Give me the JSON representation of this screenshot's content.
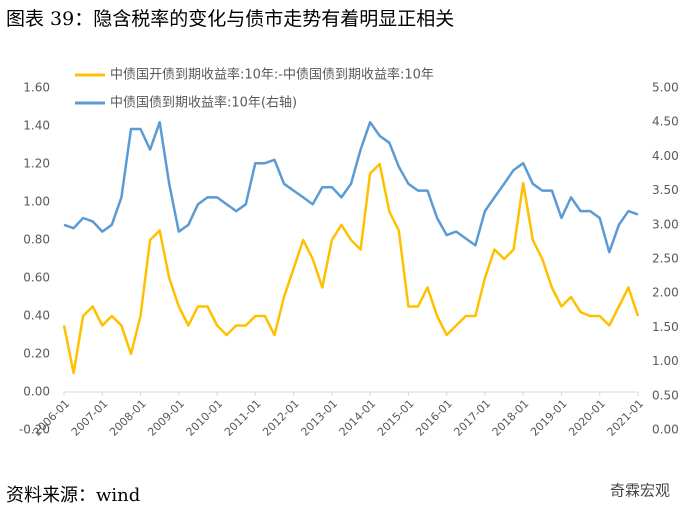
{
  "chart_data": {
    "type": "line",
    "title": "图表 39：隐含税率的变化与债市走势有着明显正相关",
    "source": "资料来源：wind",
    "watermark": "奇霖宏观",
    "categories": [
      "2006-01",
      null,
      null,
      null,
      "2007-01",
      null,
      null,
      null,
      "2008-01",
      null,
      null,
      null,
      "2009-01",
      null,
      null,
      null,
      "2010-01",
      null,
      null,
      null,
      "2011-01",
      null,
      null,
      null,
      "2012-01",
      null,
      null,
      null,
      "2013-01",
      null,
      null,
      null,
      "2014-01",
      null,
      null,
      null,
      "2015-01",
      null,
      null,
      null,
      "2016-01",
      null,
      null,
      null,
      "2017-01",
      null,
      null,
      null,
      "2018-01",
      null,
      null,
      null,
      "2019-01",
      null,
      null,
      null,
      "2020-01",
      null,
      null,
      null,
      "2021-01"
    ],
    "series": [
      {
        "name": "中债国开债到期收益率:10年:-中债国债到期收益率:10年",
        "color": "#ffc000",
        "values": [
          0.35,
          0.1,
          0.4,
          0.45,
          0.35,
          0.4,
          0.35,
          0.2,
          0.4,
          0.8,
          0.85,
          0.6,
          0.45,
          0.35,
          0.45,
          0.45,
          0.35,
          0.3,
          0.35,
          0.35,
          0.4,
          0.4,
          0.3,
          0.5,
          0.65,
          0.8,
          0.7,
          0.55,
          0.8,
          0.88,
          0.8,
          0.75,
          1.15,
          1.2,
          0.95,
          0.85,
          0.45,
          0.45,
          0.55,
          0.4,
          0.3,
          0.35,
          0.4,
          0.4,
          0.6,
          0.75,
          0.7,
          0.75,
          1.1,
          0.8,
          0.7,
          0.55,
          0.45,
          0.5,
          0.42,
          0.4,
          0.4,
          0.35,
          0.45,
          0.55,
          0.4
        ]
      },
      {
        "name": "中债国债到期收益率:10年(右轴)",
        "color": "#5b9bd5",
        "axis": "y2",
        "values": [
          3.0,
          2.95,
          3.1,
          3.05,
          2.9,
          3.0,
          3.4,
          4.4,
          4.4,
          4.1,
          4.5,
          3.6,
          2.9,
          3.0,
          3.3,
          3.4,
          3.4,
          3.3,
          3.2,
          3.3,
          3.9,
          3.9,
          3.95,
          3.6,
          3.5,
          3.4,
          3.3,
          3.55,
          3.55,
          3.4,
          3.6,
          4.1,
          4.5,
          4.3,
          4.2,
          3.85,
          3.6,
          3.5,
          3.5,
          3.1,
          2.85,
          2.9,
          2.8,
          2.7,
          3.2,
          3.4,
          3.6,
          3.8,
          3.9,
          3.6,
          3.5,
          3.5,
          3.1,
          3.4,
          3.2,
          3.2,
          3.1,
          2.6,
          3.0,
          3.2,
          3.15
        ]
      }
    ],
    "ylim": [
      -0.2,
      1.6
    ],
    "yticks": [
      {
        "value": -0.2,
        "label": "-0.20"
      },
      {
        "value": 0,
        "label": "0.00"
      },
      {
        "value": 0.2,
        "label": "0.20"
      },
      {
        "value": 0.4,
        "label": "0.40"
      },
      {
        "value": 0.6,
        "label": "0.60"
      },
      {
        "value": 0.8,
        "label": "0.80"
      },
      {
        "value": 1.0,
        "label": "1.00"
      },
      {
        "value": 1.2,
        "label": "1.20"
      },
      {
        "value": 1.4,
        "label": "1.40"
      },
      {
        "value": 1.6,
        "label": "1.60"
      }
    ],
    "y2lim": [
      0,
      5
    ],
    "y2ticks": [
      {
        "value": 0,
        "label": "0.00"
      },
      {
        "value": 0.5,
        "label": "0.50"
      },
      {
        "value": 1,
        "label": "1.00"
      },
      {
        "value": 1.5,
        "label": "1.50"
      },
      {
        "value": 2,
        "label": "2.00"
      },
      {
        "value": 2.5,
        "label": "2.50"
      },
      {
        "value": 3,
        "label": "3.00"
      },
      {
        "value": 3.5,
        "label": "3.50"
      },
      {
        "value": 4,
        "label": "4.00"
      },
      {
        "value": 4.5,
        "label": "4.50"
      },
      {
        "value": 5,
        "label": "5.00"
      }
    ],
    "legend": "top-left",
    "grid": false
  }
}
